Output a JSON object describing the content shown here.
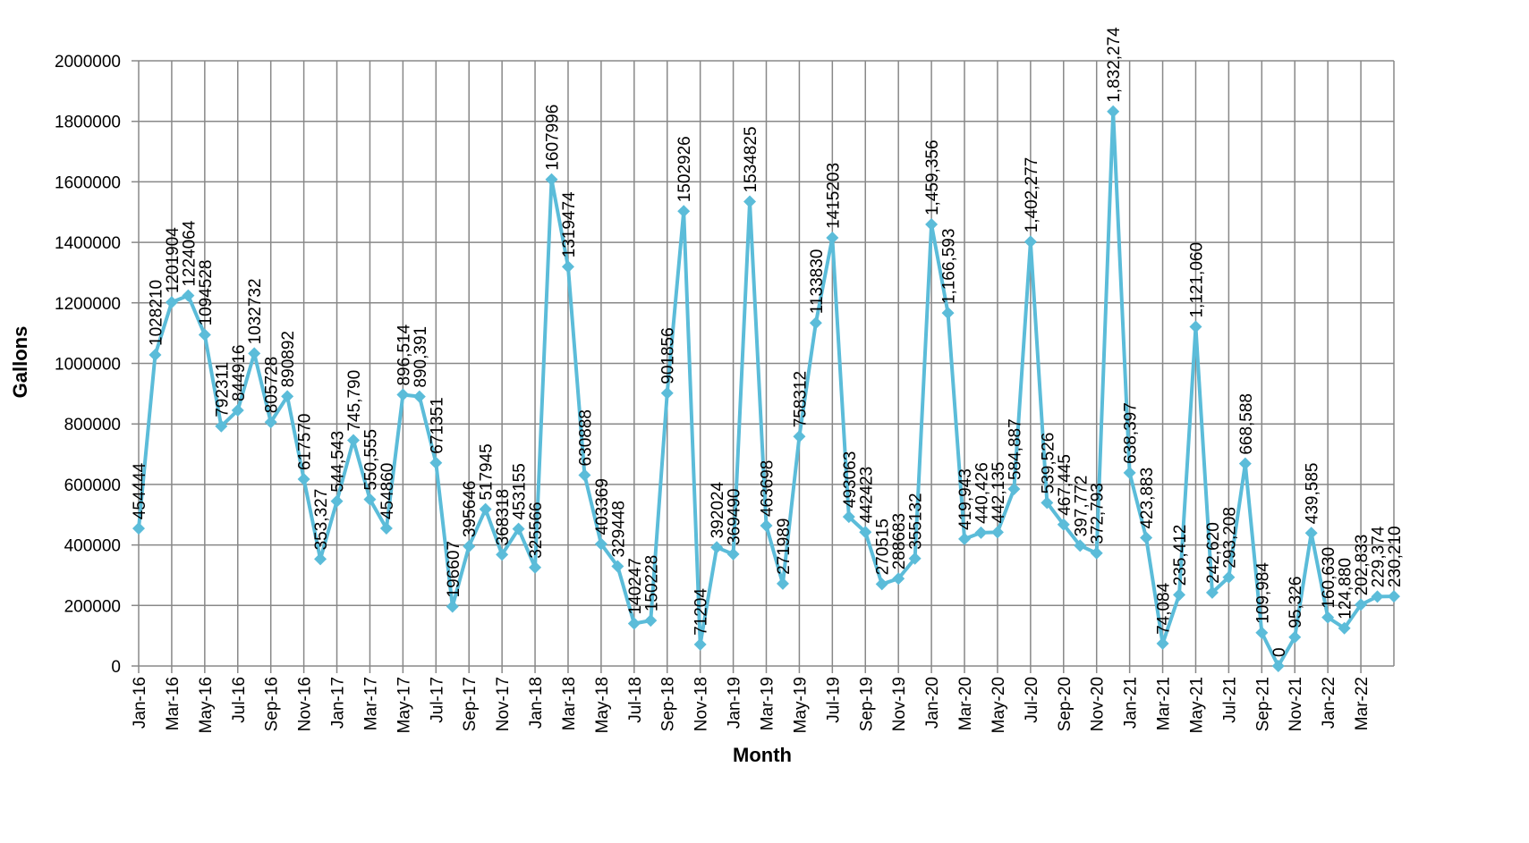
{
  "chart_data": {
    "type": "line",
    "x_label": "Month",
    "y_label": "Gallons",
    "categories": [
      "Jan-16",
      null,
      "Mar-16",
      null,
      "May-16",
      null,
      "Jul-16",
      null,
      "Sep-16",
      null,
      "Nov-16",
      null,
      "Jan-17",
      null,
      "Mar-17",
      null,
      "May-17",
      null,
      "Jul-17",
      null,
      "Sep-17",
      null,
      "Nov-17",
      null,
      "Jan-18",
      null,
      "Mar-18",
      null,
      "May-18",
      null,
      "Jul-18",
      null,
      "Sep-18",
      null,
      "Nov-18",
      null,
      "Jan-19",
      null,
      "Mar-19",
      null,
      "May-19",
      null,
      "Jul-19",
      null,
      "Sep-19",
      null,
      "Nov-19",
      null,
      "Jan-20",
      null,
      "Mar-20",
      null,
      "May-20",
      null,
      "Jul-20",
      null,
      "Sep-20",
      null,
      "Nov-20",
      null,
      "Jan-21",
      null,
      "Mar-21",
      null,
      "May-21",
      null,
      "Jul-21",
      null,
      "Sep-21",
      null,
      "Nov-21",
      null,
      "Jan-22",
      null,
      "Mar-22",
      null,
      null
    ],
    "values": [
      454444,
      1028210,
      1201904,
      1224064,
      1094528,
      792311,
      844916,
      1032732,
      805728,
      890892,
      617570,
      353327,
      544543,
      745790,
      550555,
      454860,
      896514,
      890391,
      671351,
      196607,
      395646,
      517945,
      368318,
      453155,
      325566,
      1607996,
      1319474,
      630888,
      403369,
      329448,
      140247,
      150228,
      901856,
      1502926,
      71204,
      392024,
      369490,
      1534825,
      463698,
      271989,
      758312,
      1133830,
      1415203,
      493063,
      442423,
      270515,
      288683,
      355132,
      1459356,
      1166593,
      419943,
      440426,
      442135,
      584887,
      1402277,
      539526,
      467445,
      397772,
      372793,
      1832274,
      638397,
      423883,
      74084,
      235412,
      1121060,
      242620,
      293208,
      668588,
      109984,
      0,
      95326,
      439585,
      160630,
      124880,
      202833,
      229374,
      230210
    ],
    "value_labels": [
      "454444",
      "1028210",
      "1201904",
      "1224064",
      "1094528",
      "792311",
      "844916",
      "1032732",
      "805728",
      "890892",
      "617570",
      "353,327",
      "544,543",
      "745,790",
      "550,555",
      "454860",
      "896,514",
      "890,391",
      "671351",
      "196607",
      "395646",
      "517945",
      "368318",
      "453155",
      "325566",
      "1607996",
      "1319474",
      "630888",
      "403369",
      "329448",
      "140247",
      "150228",
      "901856",
      "1502926",
      "71204",
      "392024",
      "369490",
      "1534825",
      "463698",
      "271989",
      "758312",
      "1133830",
      "1415203",
      "493063",
      "442423",
      "270515",
      "288683",
      "355132",
      "1,459,356",
      "1,166,593",
      "419,943",
      "440,426",
      "442,135",
      "584,887",
      "1,402,277",
      "539,526",
      "467,445",
      "397,772",
      "372,793",
      "1,832,274",
      "638,397",
      "423,883",
      "74,084",
      "235,412",
      "1,121,060",
      "242,620",
      "293,208",
      "668,588",
      "109,984",
      "0",
      "95,326",
      "439,585",
      "160,630",
      "124,880",
      "202,833",
      "229,374",
      "230,210"
    ],
    "color": "#5bbcd9",
    "ylim": [
      0,
      2000000
    ],
    "yticks": [
      0,
      200000,
      400000,
      600000,
      800000,
      1000000,
      1200000,
      1400000,
      1600000,
      1800000,
      2000000
    ],
    "grid": true
  }
}
